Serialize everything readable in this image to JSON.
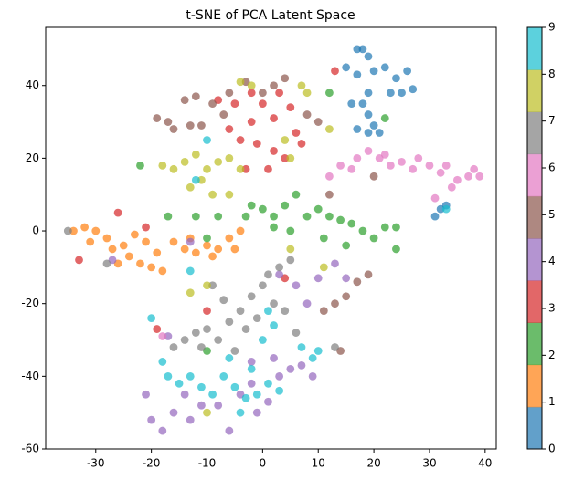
{
  "chart_data": {
    "type": "scatter",
    "title": "t-SNE of PCA Latent Space",
    "xlim": [
      -39,
      42
    ],
    "ylim": [
      -60,
      56
    ],
    "xticks": [
      -30,
      -20,
      -10,
      0,
      10,
      20,
      30,
      40
    ],
    "yticks": [
      -60,
      -40,
      -20,
      0,
      20,
      40
    ],
    "alpha": 0.7,
    "groups": [
      {
        "x": [
          17,
          18,
          19,
          15,
          17,
          20,
          22,
          24,
          26,
          23,
          19,
          18,
          16,
          19,
          20,
          17,
          21,
          25,
          27,
          32,
          33,
          31,
          19
        ],
        "y": [
          50,
          50,
          48,
          45,
          43,
          44,
          45,
          42,
          44,
          38,
          38,
          35,
          35,
          32,
          29,
          28,
          27,
          38,
          39,
          6,
          7,
          4,
          27
        ]
      },
      {
        "x": [
          -34,
          -32,
          -30,
          -31,
          -28,
          -27,
          -25,
          -24,
          -22,
          -20,
          -19,
          -21,
          -23,
          -16,
          -14,
          -12,
          -10,
          -8,
          -6,
          -4,
          -5,
          -9,
          -13,
          -18,
          -26
        ],
        "y": [
          0,
          1,
          0,
          -3,
          -2,
          -5,
          -4,
          -7,
          -9,
          -10,
          -6,
          -3,
          -1,
          -3,
          -5,
          -6,
          -4,
          -5,
          -2,
          0,
          -5,
          -7,
          -2,
          -11,
          -9
        ]
      },
      {
        "x": [
          -2,
          0,
          2,
          4,
          6,
          8,
          5,
          2,
          -3,
          -8,
          -12,
          -17,
          -22,
          10,
          12,
          14,
          16,
          18,
          20,
          22,
          24,
          24,
          11,
          15,
          -10,
          -10,
          12,
          22
        ],
        "y": [
          7,
          6,
          4,
          7,
          10,
          4,
          0,
          1,
          4,
          4,
          4,
          4,
          18,
          6,
          4,
          3,
          2,
          0,
          -2,
          1,
          1,
          -5,
          -2,
          -4,
          -2,
          -33,
          38,
          31
        ]
      },
      {
        "x": [
          -5,
          -2,
          0,
          3,
          5,
          2,
          -2,
          -6,
          -4,
          -1,
          2,
          4,
          1,
          -3,
          6,
          7,
          -8,
          13,
          -26,
          -21,
          -33,
          -19,
          -10,
          4
        ],
        "y": [
          35,
          38,
          35,
          38,
          34,
          31,
          30,
          28,
          25,
          24,
          22,
          20,
          17,
          17,
          27,
          24,
          36,
          44,
          5,
          1,
          -8,
          -27,
          -22,
          -13
        ]
      },
      {
        "x": [
          -21,
          -20,
          -18,
          -16,
          -13,
          -11,
          -14,
          -8,
          -4,
          -2,
          -1,
          1,
          3,
          5,
          7,
          9,
          2,
          -2,
          -6,
          6,
          3,
          8,
          10,
          -13,
          -27,
          -17,
          13,
          15
        ],
        "y": [
          -45,
          -52,
          -55,
          -50,
          -52,
          -48,
          -45,
          -48,
          -45,
          -42,
          -50,
          -47,
          -40,
          -38,
          -37,
          -40,
          -35,
          -36,
          -55,
          -15,
          -12,
          -20,
          -13,
          -3,
          -8,
          -29,
          -9,
          -13
        ]
      },
      {
        "x": [
          -19,
          -17,
          -14,
          -12,
          -9,
          -7,
          -11,
          -13,
          -16,
          -6,
          0,
          2,
          4,
          -3,
          8,
          10,
          15,
          13,
          11,
          17,
          19,
          12,
          20,
          14
        ],
        "y": [
          31,
          30,
          36,
          37,
          35,
          32,
          29,
          29,
          28,
          38,
          38,
          40,
          42,
          41,
          32,
          30,
          -18,
          -20,
          -22,
          -14,
          -12,
          10,
          15,
          -33
        ]
      },
      {
        "x": [
          14,
          17,
          19,
          21,
          23,
          25,
          27,
          28,
          30,
          32,
          33,
          35,
          37,
          39,
          38,
          34,
          31,
          22,
          16,
          12,
          -18
        ],
        "y": [
          18,
          20,
          22,
          20,
          18,
          19,
          17,
          20,
          18,
          16,
          18,
          14,
          15,
          15,
          17,
          12,
          9,
          21,
          17,
          15,
          -29
        ]
      },
      {
        "x": [
          -16,
          -14,
          -12,
          -10,
          -8,
          -6,
          -4,
          -2,
          0,
          1,
          3,
          5,
          -3,
          -1,
          2,
          4,
          -7,
          -9,
          6,
          -11,
          -35,
          -28,
          13,
          -5
        ],
        "y": [
          -32,
          -30,
          -28,
          -27,
          -30,
          -25,
          -22,
          -18,
          -15,
          -12,
          -10,
          -8,
          -27,
          -24,
          -20,
          -22,
          -19,
          -15,
          -28,
          -32,
          0,
          -9,
          -32,
          -33
        ]
      },
      {
        "x": [
          -18,
          -16,
          -14,
          -12,
          -10,
          -8,
          -6,
          -4,
          -11,
          -9,
          -13,
          -6,
          -4,
          -2,
          8,
          7,
          12,
          4,
          5,
          -10,
          -13,
          5,
          -10,
          11
        ],
        "y": [
          18,
          17,
          19,
          21,
          17,
          19,
          20,
          17,
          14,
          10,
          12,
          10,
          41,
          40,
          38,
          40,
          28,
          25,
          20,
          -15,
          -17,
          -5,
          -50,
          -10
        ]
      },
      {
        "x": [
          -17,
          -15,
          -13,
          -11,
          -9,
          -7,
          -5,
          -3,
          -1,
          1,
          3,
          -4,
          -2,
          0,
          2,
          1,
          7,
          9,
          10,
          -6,
          -18,
          -10,
          -12,
          -20,
          -13,
          33
        ],
        "y": [
          -40,
          -42,
          -40,
          -43,
          -45,
          -40,
          -43,
          -46,
          -45,
          -42,
          -44,
          -50,
          -38,
          -30,
          -26,
          -22,
          -32,
          -35,
          -33,
          -35,
          -36,
          25,
          14,
          -24,
          -11,
          6
        ]
      }
    ],
    "colorbar": {
      "colors": [
        "#1f77b4",
        "#ff7f0e",
        "#2ca02c",
        "#d62728",
        "#9467bd",
        "#8c564b",
        "#e377c2",
        "#7f7f7f",
        "#bcbd22",
        "#17becf"
      ],
      "lim": [
        0,
        9
      ],
      "ticks": [
        0,
        1,
        2,
        3,
        4,
        5,
        6,
        7,
        8,
        9
      ]
    }
  }
}
